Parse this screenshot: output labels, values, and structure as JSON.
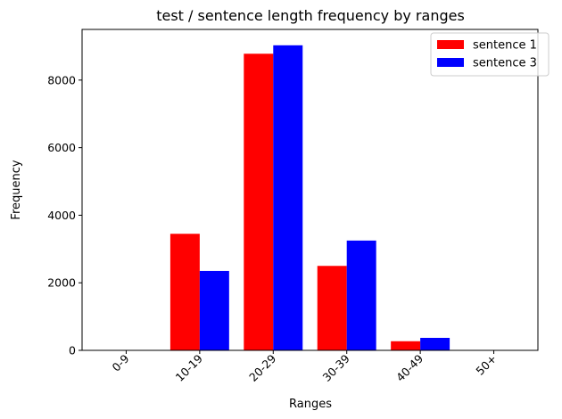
{
  "chart_data": {
    "type": "bar",
    "title": "test / sentence length frequency by ranges",
    "xlabel": "Ranges",
    "ylabel": "Frequency",
    "categories": [
      "0-9",
      "10-19",
      "20-29",
      "30-39",
      "40-49",
      "50+"
    ],
    "series": [
      {
        "name": "sentence 1",
        "color": "#ff0000",
        "values": [
          0,
          3450,
          8780,
          2500,
          270,
          0
        ]
      },
      {
        "name": "sentence 3",
        "color": "#0000ff",
        "values": [
          0,
          2350,
          9030,
          3250,
          370,
          0
        ]
      }
    ],
    "yticks": [
      0,
      2000,
      4000,
      6000,
      8000
    ],
    "ylim": [
      0,
      9500
    ],
    "legend_position": "top-right",
    "grid": false
  }
}
